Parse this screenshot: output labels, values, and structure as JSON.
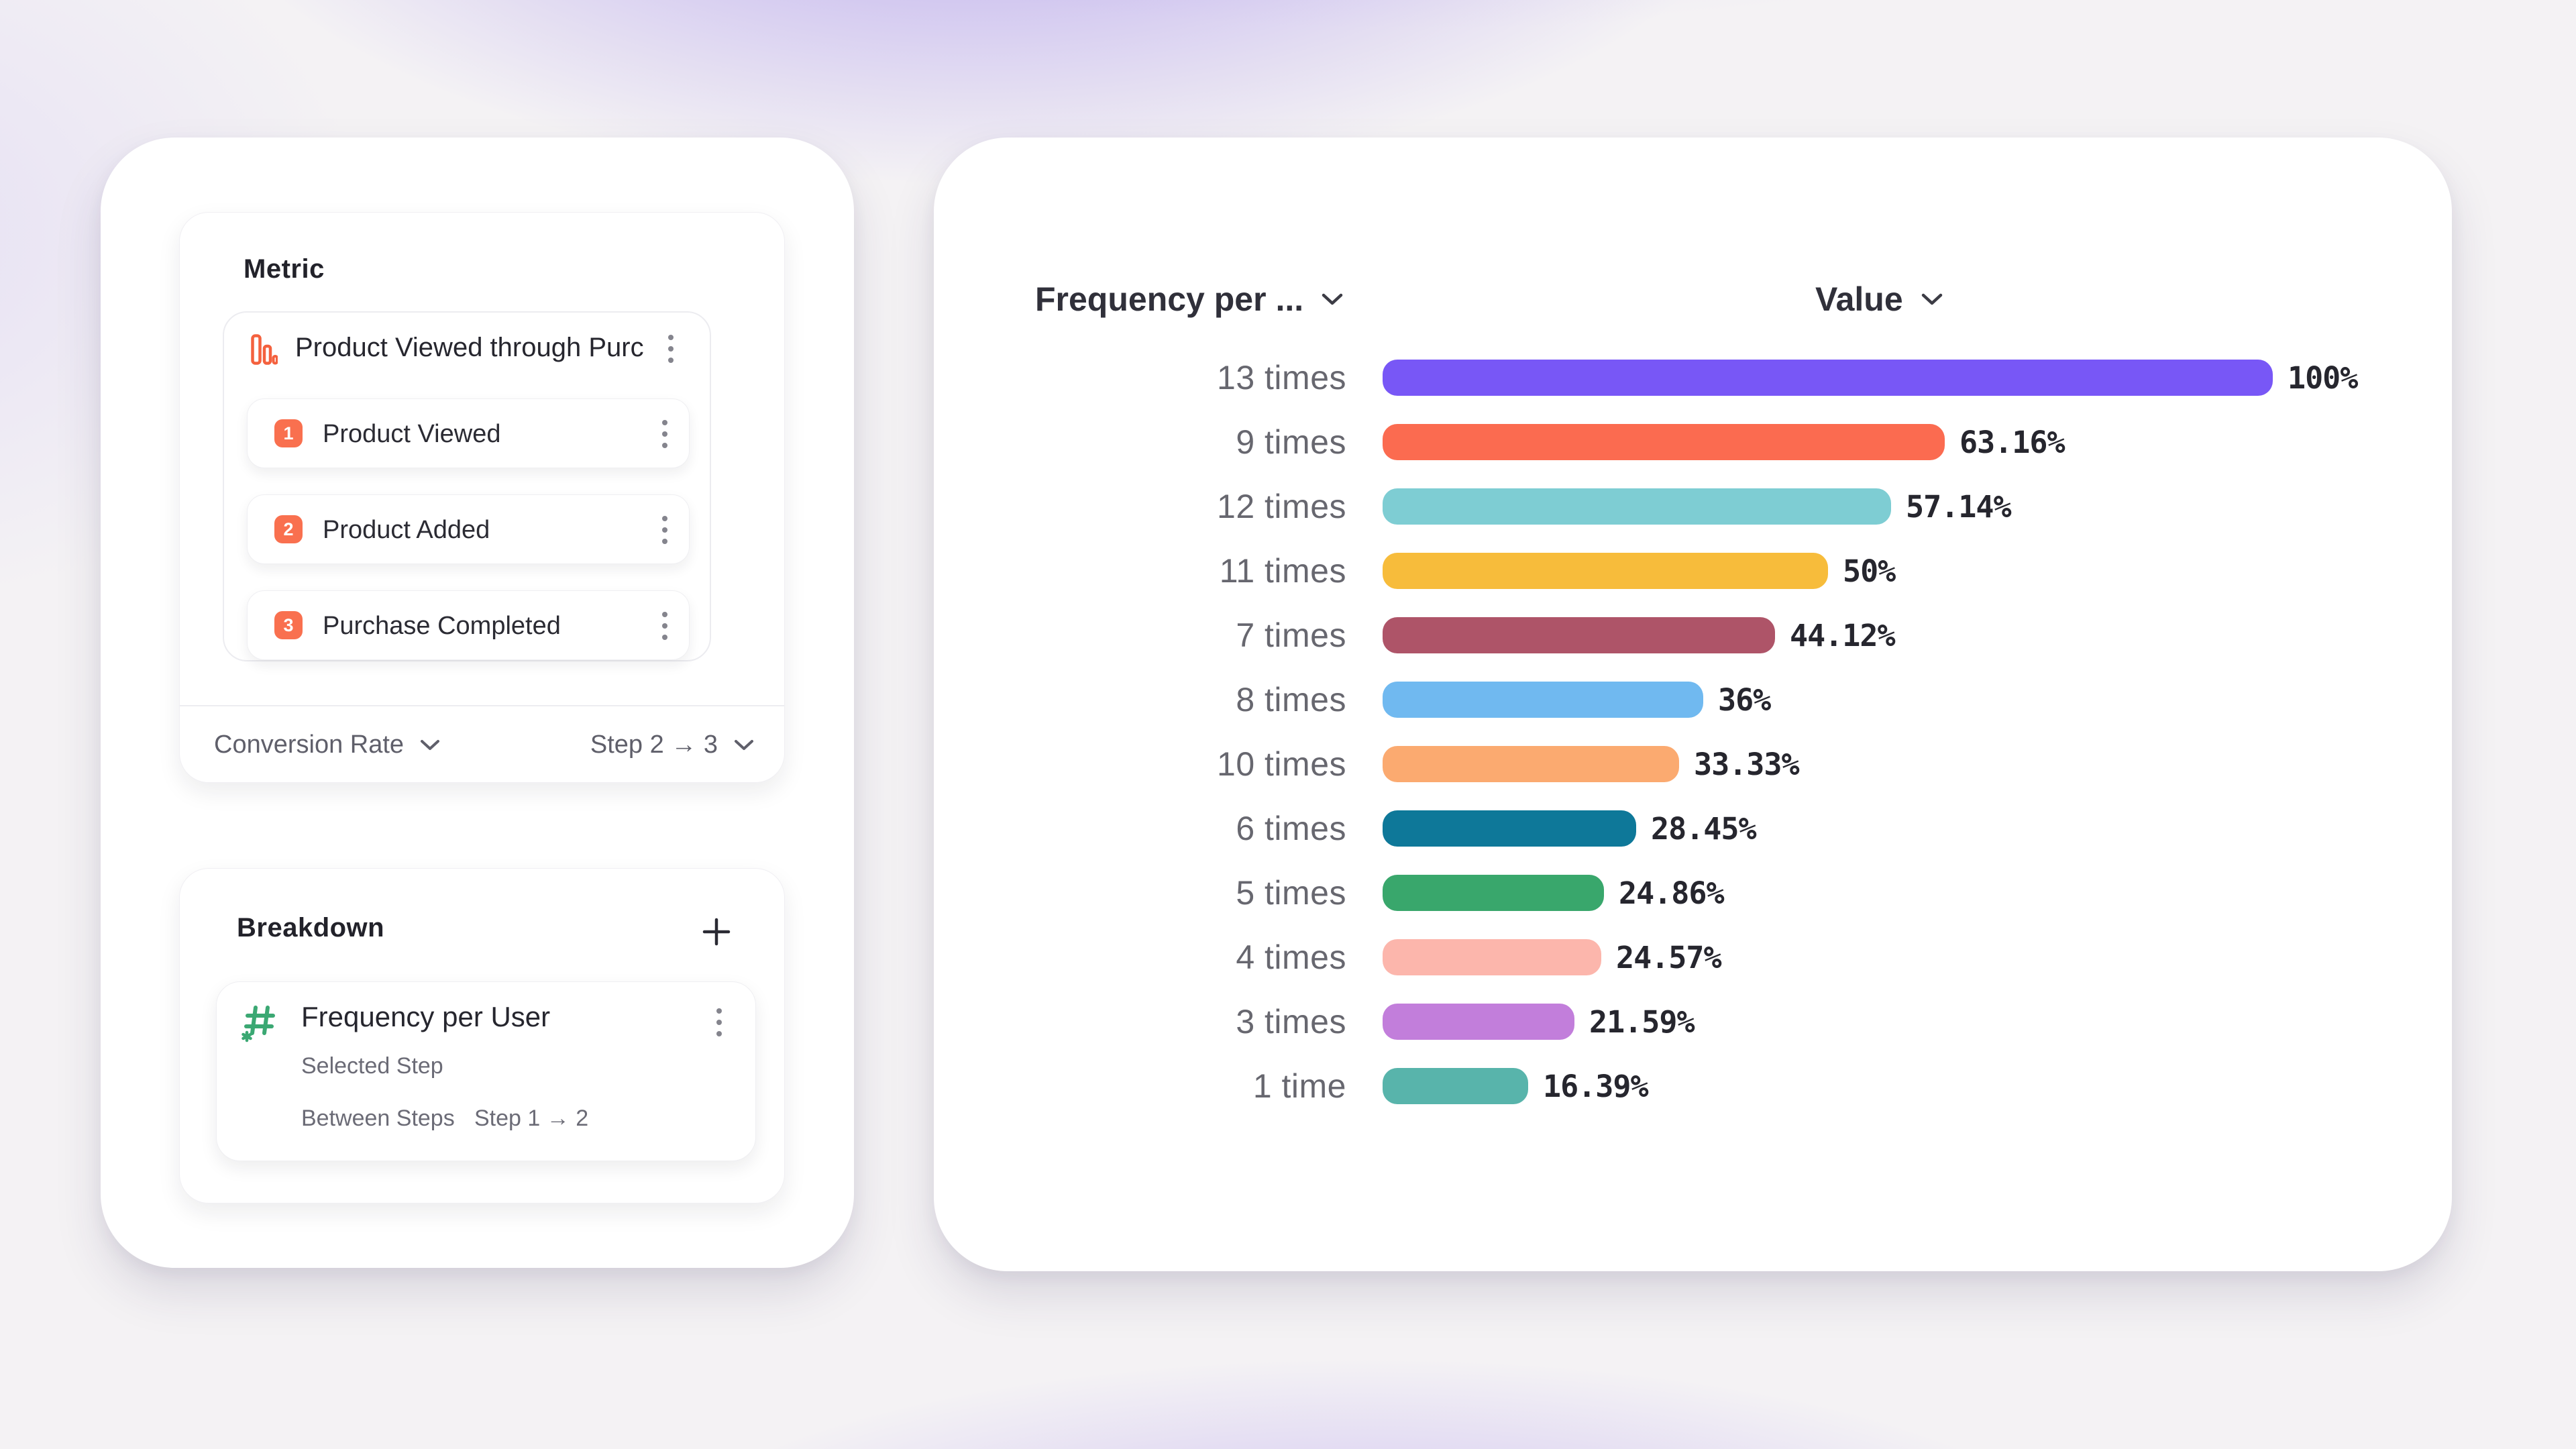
{
  "accent_colors": {
    "coral": "#F9704F",
    "funnel_icon": "#F4613E",
    "green": "#3BA873",
    "text_dark": "#26262e",
    "text_gray": "#67676f"
  },
  "metric_panel": {
    "title": "Metric",
    "funnel": {
      "title": "Product Viewed through Purch...",
      "steps": [
        {
          "num": "1",
          "label": "Product Viewed"
        },
        {
          "num": "2",
          "label": "Product Added"
        },
        {
          "num": "3",
          "label": "Purchase Completed"
        }
      ]
    },
    "footer": {
      "left_label": "Conversion Rate",
      "right_label": "Step 2 → 3"
    }
  },
  "breakdown_panel": {
    "title": "Breakdown",
    "item": {
      "title": "Frequency per User",
      "row1_label": "Selected Step",
      "row2_label": "Between Steps",
      "row2_value": "Step 1 → 2"
    }
  },
  "chart": {
    "col1_header": "Frequency per ...",
    "col2_header": "Value",
    "rows": [
      {
        "label": "13 times",
        "pct": 100,
        "value_label": "100%",
        "color": "#7857F6"
      },
      {
        "label": "9 times",
        "pct": 63.16,
        "value_label": "63.16%",
        "color": "#FB6B50"
      },
      {
        "label": "12 times",
        "pct": 57.14,
        "value_label": "57.14%",
        "color": "#7ECDD3"
      },
      {
        "label": "11 times",
        "pct": 50,
        "value_label": "50%",
        "color": "#F7BC3B"
      },
      {
        "label": "7 times",
        "pct": 44.12,
        "value_label": "44.12%",
        "color": "#AE5468"
      },
      {
        "label": "8 times",
        "pct": 36,
        "value_label": "36%",
        "color": "#70B9F0"
      },
      {
        "label": "10 times",
        "pct": 33.33,
        "value_label": "33.33%",
        "color": "#FBAA70"
      },
      {
        "label": "6 times",
        "pct": 28.45,
        "value_label": "28.45%",
        "color": "#0E7899"
      },
      {
        "label": "5 times",
        "pct": 24.86,
        "value_label": "24.86%",
        "color": "#39A76C"
      },
      {
        "label": "4 times",
        "pct": 24.57,
        "value_label": "24.57%",
        "color": "#FCB6AC"
      },
      {
        "label": "3 times",
        "pct": 21.59,
        "value_label": "21.59%",
        "color": "#C27EDB"
      },
      {
        "label": "1 time",
        "pct": 16.39,
        "value_label": "16.39%",
        "color": "#58B4AB"
      }
    ]
  },
  "chart_data": {
    "type": "bar",
    "orientation": "horizontal",
    "title": "",
    "xlabel": "Value",
    "ylabel": "Frequency per ...",
    "categories": [
      "13 times",
      "9 times",
      "12 times",
      "11 times",
      "7 times",
      "8 times",
      "10 times",
      "6 times",
      "5 times",
      "4 times",
      "3 times",
      "1 time"
    ],
    "values": [
      100,
      63.16,
      57.14,
      50,
      44.12,
      36,
      33.33,
      28.45,
      24.86,
      24.57,
      21.59,
      16.39
    ],
    "value_labels": [
      "100%",
      "63.16%",
      "57.14%",
      "50%",
      "44.12%",
      "36%",
      "33.33%",
      "28.45%",
      "24.86%",
      "24.57%",
      "21.59%",
      "16.39%"
    ],
    "xlim": [
      0,
      100
    ],
    "grid": false,
    "legend": false,
    "bar_colors": [
      "#7857F6",
      "#FB6B50",
      "#7ECDD3",
      "#F7BC3B",
      "#AE5468",
      "#70B9F0",
      "#FBAA70",
      "#0E7899",
      "#39A76C",
      "#FCB6AC",
      "#C27EDB",
      "#58B4AB"
    ]
  }
}
